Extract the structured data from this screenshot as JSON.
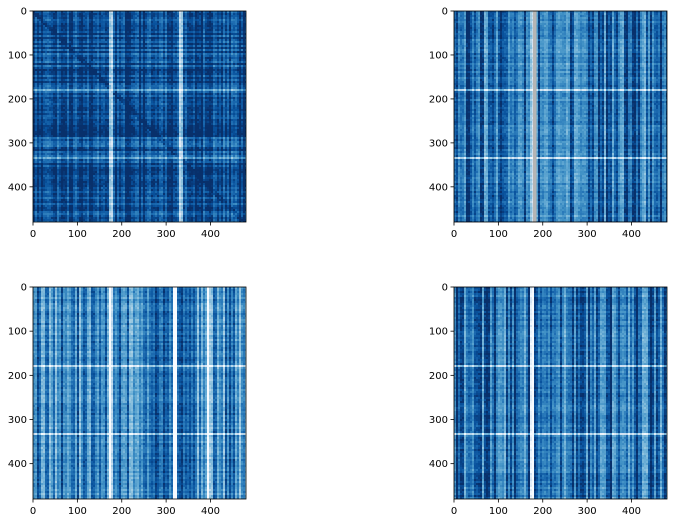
{
  "figure": {
    "background": "#ffffff",
    "colormap": "Blues"
  },
  "chart_data": [
    {
      "type": "heatmap",
      "title": "",
      "xlabel": "",
      "ylabel": "",
      "xlim": [
        0,
        480
      ],
      "ylim": [
        480,
        0
      ],
      "xticks": [
        0,
        100,
        200,
        300,
        400
      ],
      "yticks": [
        0,
        100,
        200,
        300,
        400
      ],
      "xtick_labels": [
        "0",
        "100",
        "200",
        "300",
        "400"
      ],
      "ytick_labels": [
        "0",
        "100",
        "200",
        "300",
        "400"
      ],
      "grid": false,
      "colormap": "Blues",
      "pattern": {
        "base_level": 0.88,
        "texture": "row-and-column stripes",
        "bright_columns": [
          180,
          335
        ],
        "bright_rows": [
          180,
          335
        ],
        "diagonal": "darker"
      }
    },
    {
      "type": "heatmap",
      "title": "",
      "xlabel": "",
      "ylabel": "",
      "xlim": [
        0,
        480
      ],
      "ylim": [
        480,
        0
      ],
      "xticks": [
        0,
        100,
        200,
        300,
        400
      ],
      "yticks": [
        0,
        100,
        200,
        300,
        400
      ],
      "xtick_labels": [
        "0",
        "100",
        "200",
        "300",
        "400"
      ],
      "ytick_labels": [
        "0",
        "100",
        "200",
        "300",
        "400"
      ],
      "grid": false,
      "colormap": "Blues",
      "pattern": {
        "base_level": 0.74,
        "texture": "vertical stripes",
        "bright_columns": [
          180
        ],
        "bright_rows": [
          180,
          335
        ],
        "gray_band_columns": [
          178,
          186
        ],
        "gray_band_color": "#b5b5b5"
      }
    },
    {
      "type": "heatmap",
      "title": "",
      "xlabel": "",
      "ylabel": "",
      "xlim": [
        0,
        480
      ],
      "ylim": [
        480,
        0
      ],
      "xticks": [
        0,
        100,
        200,
        300,
        400
      ],
      "yticks": [
        0,
        100,
        200,
        300,
        400
      ],
      "xtick_labels": [
        "0",
        "100",
        "200",
        "300",
        "400"
      ],
      "ytick_labels": [
        "0",
        "100",
        "200",
        "300",
        "400"
      ],
      "grid": false,
      "colormap": "Blues",
      "pattern": {
        "base_level": 0.66,
        "texture": "vertical stripes",
        "bright_columns": [
          180,
          320,
          400
        ],
        "bright_rows": [
          180,
          335
        ]
      }
    },
    {
      "type": "heatmap",
      "title": "",
      "xlabel": "",
      "ylabel": "",
      "xlim": [
        0,
        480
      ],
      "ylim": [
        480,
        0
      ],
      "xticks": [
        0,
        100,
        200,
        300,
        400
      ],
      "yticks": [
        0,
        100,
        200,
        300,
        400
      ],
      "xtick_labels": [
        "0",
        "100",
        "200",
        "300",
        "400"
      ],
      "ytick_labels": [
        "0",
        "100",
        "200",
        "300",
        "400"
      ],
      "grid": false,
      "colormap": "Blues",
      "pattern": {
        "base_level": 0.76,
        "texture": "vertical stripes",
        "bright_columns": [
          180
        ],
        "bright_rows": [
          180,
          335
        ]
      }
    }
  ]
}
